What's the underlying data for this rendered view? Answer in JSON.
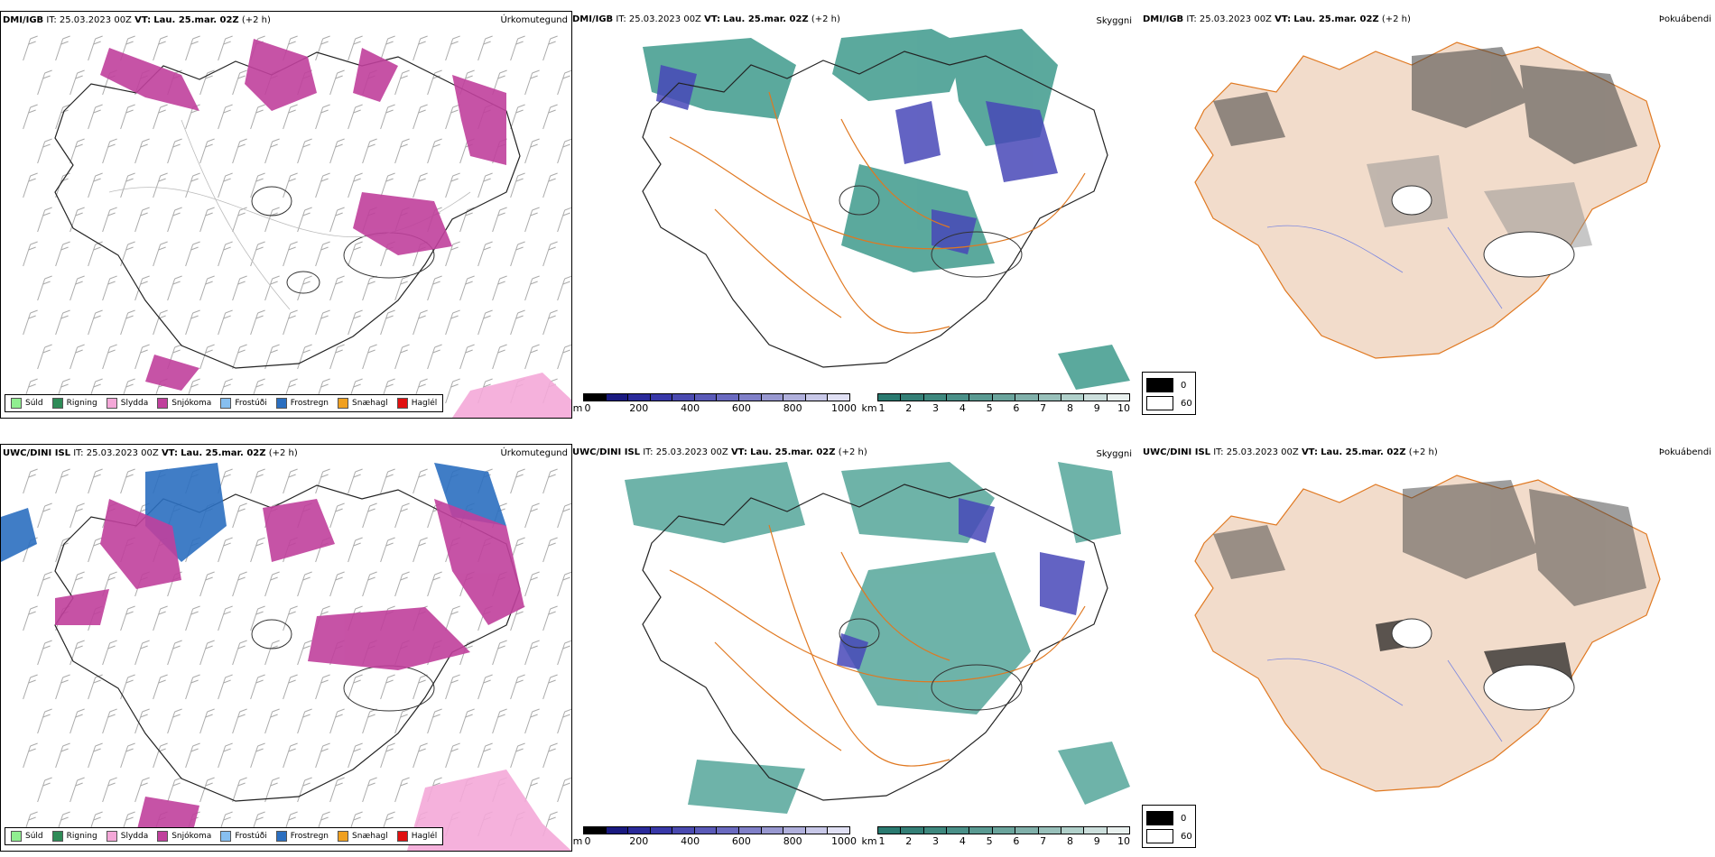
{
  "rows": [
    {
      "model": "DMI/IGB",
      "it_label": "IT:",
      "it_value": "25.03.2023 00Z",
      "vt_label": "VT:",
      "vt_value": "Lau. 25.mar. 02Z",
      "lead": "(+2 h)"
    },
    {
      "model": "UWC/DINI ISL",
      "it_label": "IT:",
      "it_value": "25.03.2023 00Z",
      "vt_label": "VT:",
      "vt_value": "Lau. 25.mar. 02Z",
      "lead": "(+2 h)"
    }
  ],
  "panels": {
    "precip_type": "Úrkomutegund",
    "cloud": "Skyggni",
    "fog": "Þokuábendi"
  },
  "precip_legend": [
    {
      "label": "Súld",
      "color": "#90ee90"
    },
    {
      "label": "Rigning",
      "color": "#2e8b57"
    },
    {
      "label": "Slydda",
      "color": "#f4a8d8"
    },
    {
      "label": "Snjókoma",
      "color": "#c0409c"
    },
    {
      "label": "Frostúði",
      "color": "#87bff0"
    },
    {
      "label": "Frostregn",
      "color": "#2b6fc0"
    },
    {
      "label": "Snæhagl",
      "color": "#f0a020"
    },
    {
      "label": "Haglél",
      "color": "#e01010"
    }
  ],
  "cbar_m": {
    "unit": "m",
    "ticks": [
      "0",
      "200",
      "400",
      "600",
      "800",
      "1000"
    ],
    "colors": [
      "#000000",
      "#1a1a80",
      "#2a2a9a",
      "#3838a8",
      "#4a4ab0",
      "#5a5ab8",
      "#6a6ac0",
      "#8080c8",
      "#9898d0",
      "#b0b0dc",
      "#c8c8e8",
      "#e0e0f4"
    ]
  },
  "cbar_km": {
    "unit": "km",
    "ticks": [
      "1",
      "2",
      "3",
      "4",
      "5",
      "6",
      "7",
      "8",
      "9",
      "10"
    ],
    "colors": [
      "#2a7a70",
      "#347f76",
      "#3e887e",
      "#4a9088",
      "#5a9a92",
      "#6aa49c",
      "#80b0aa",
      "#98c0ba",
      "#b0d0ca",
      "#ccdfdc",
      "#e8f0ee"
    ]
  },
  "fog_legend": {
    "top": "0",
    "bottom": "60"
  },
  "colors": {
    "snow": "#c0409c",
    "freezing_rain": "#2b6fc0",
    "sleet": "#f4a8d8",
    "visibility_teal": "#3e9a8c",
    "visibility_blue": "#4848b8",
    "roads": "#e07820",
    "land_tan": "#f2dccb",
    "fog_gray": "#404040"
  }
}
